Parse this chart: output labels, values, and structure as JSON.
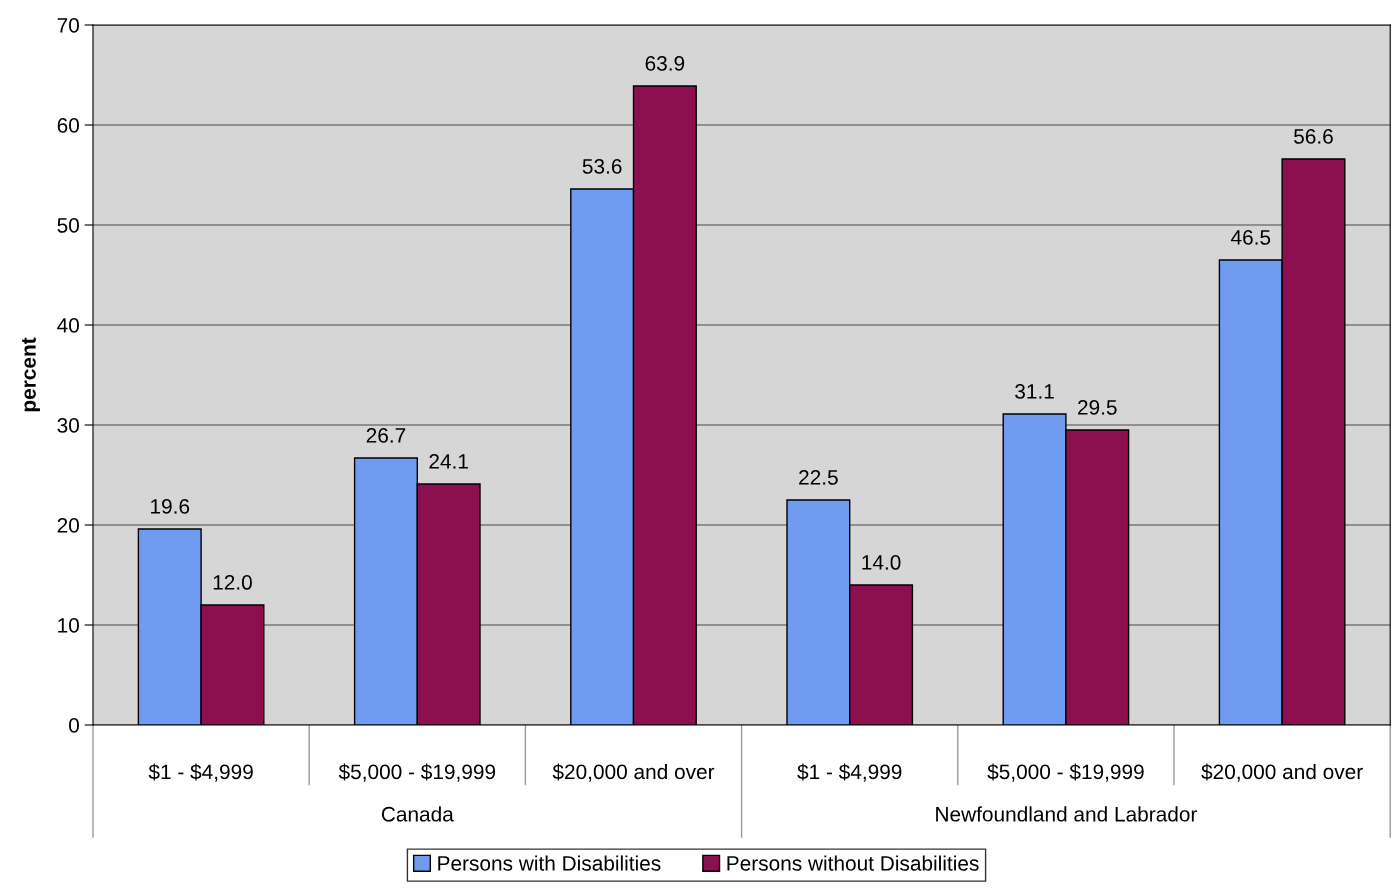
{
  "chart_data": {
    "type": "bar",
    "ylabel": "percent",
    "categories": [
      "$1 - $4,999",
      "$5,000 - $19,999",
      "$20,000 and over",
      "$1 - $4,999",
      "$5,000 - $19,999",
      "$20,000 and over"
    ],
    "series": [
      {
        "name": "Persons with Disabilities",
        "color": "#6f9cf0",
        "values": [
          19.6,
          26.7,
          53.6,
          22.5,
          31.1,
          46.5
        ],
        "value_labels": [
          "19.6",
          "26.7",
          "53.6",
          "22.5",
          "31.1",
          "46.5"
        ]
      },
      {
        "name": "Persons without Disabilities",
        "color": "#8c1050",
        "values": [
          12.0,
          24.1,
          63.9,
          14.0,
          29.5,
          56.6
        ],
        "value_labels": [
          "12.0",
          "24.1",
          "63.9",
          "14.0",
          "29.5",
          "56.6"
        ]
      }
    ],
    "ylim": [
      0,
      70
    ],
    "yticks": [
      0,
      10,
      20,
      30,
      40,
      50,
      60,
      70
    ],
    "annotations": [
      "Canada",
      "Newfoundland and Labrador"
    ],
    "grid": "y",
    "legend": "bottom"
  }
}
